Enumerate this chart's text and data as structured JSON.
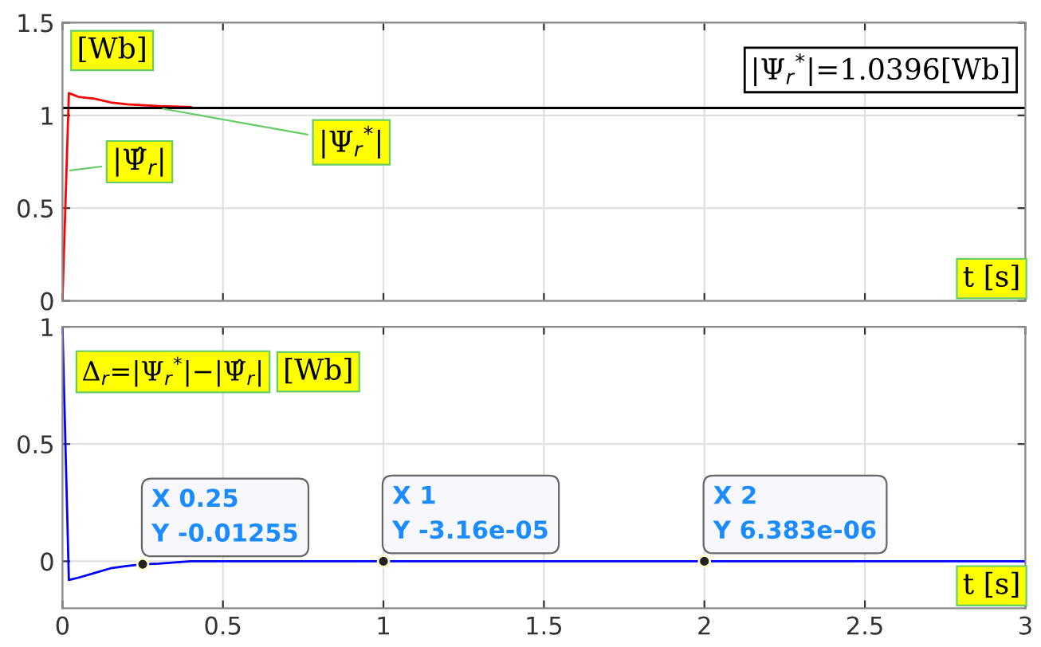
{
  "chart_data": [
    {
      "type": "line",
      "ylabel": "[Wb]",
      "xlabel": "t [s]",
      "xlim": [
        0,
        3
      ],
      "xticks": [
        0,
        0.5,
        1,
        1.5,
        2,
        2.5,
        3
      ],
      "ylim": [
        0,
        1.5
      ],
      "yticks": [
        0,
        0.5,
        1,
        1.5
      ],
      "grid": true,
      "tick_labels": "y",
      "series": [
        {
          "color": "#ff0000",
          "x": [
            0,
            0.02,
            0.05,
            0.1,
            0.15,
            0.2,
            0.3,
            0.4
          ],
          "values": [
            0,
            1.12,
            1.1,
            1.09,
            1.07,
            1.06,
            1.05,
            1.045
          ]
        },
        {
          "color": "#000000",
          "x": [
            0,
            3
          ],
          "values": [
            1.04,
            1.04
          ]
        }
      ],
      "annotations": [
        {
          "text": "|Ψ̂$_{r}$|",
          "x": 0.01,
          "y": 0.7
        },
        {
          "text": "|Ψ$_{r}$$^{*}$|",
          "x": 0.3,
          "y": 1.04
        },
        "|Ψ$_{r}$$^{*}$|=1.0396[Wb]"
      ]
    },
    {
      "type": "line",
      "ylabel": "[Wb]",
      "xlabel": "t [s]",
      "xlim": [
        0,
        3
      ],
      "xticks": [
        0,
        0.5,
        1,
        1.5,
        2,
        2.5,
        3
      ],
      "ylim": [
        -0.2,
        1
      ],
      "yticks": [
        0,
        0.5,
        1
      ],
      "grid": true,
      "series": [
        {
          "color": "#0000ff",
          "x": [
            0,
            0.02,
            0.05,
            0.1,
            0.15,
            0.2,
            0.25,
            0.3,
            0.4,
            0.5,
            1,
            2,
            3
          ],
          "values": [
            1,
            -0.08,
            -0.07,
            -0.05,
            -0.03,
            -0.02,
            -0.01255,
            -0.01,
            0,
            0,
            -3.16e-05,
            6.383e-06,
            0
          ]
        }
      ],
      "annotations": [
        "Δ$_{r}$=|Ψ$_{r}$$^{*}$|−|Ψ̂$_{r}$|",
        {
          "text": "X 0.25\nY -0.01255",
          "x": 0.25,
          "y": -0.01255
        },
        {
          "text": "X 1\nY -3.16e-05",
          "x": 1,
          "y": -3.16e-05
        },
        {
          "text": "X 2\nY 6.383e-06",
          "x": 2,
          "y": 6.383e-06
        }
      ]
    }
  ]
}
